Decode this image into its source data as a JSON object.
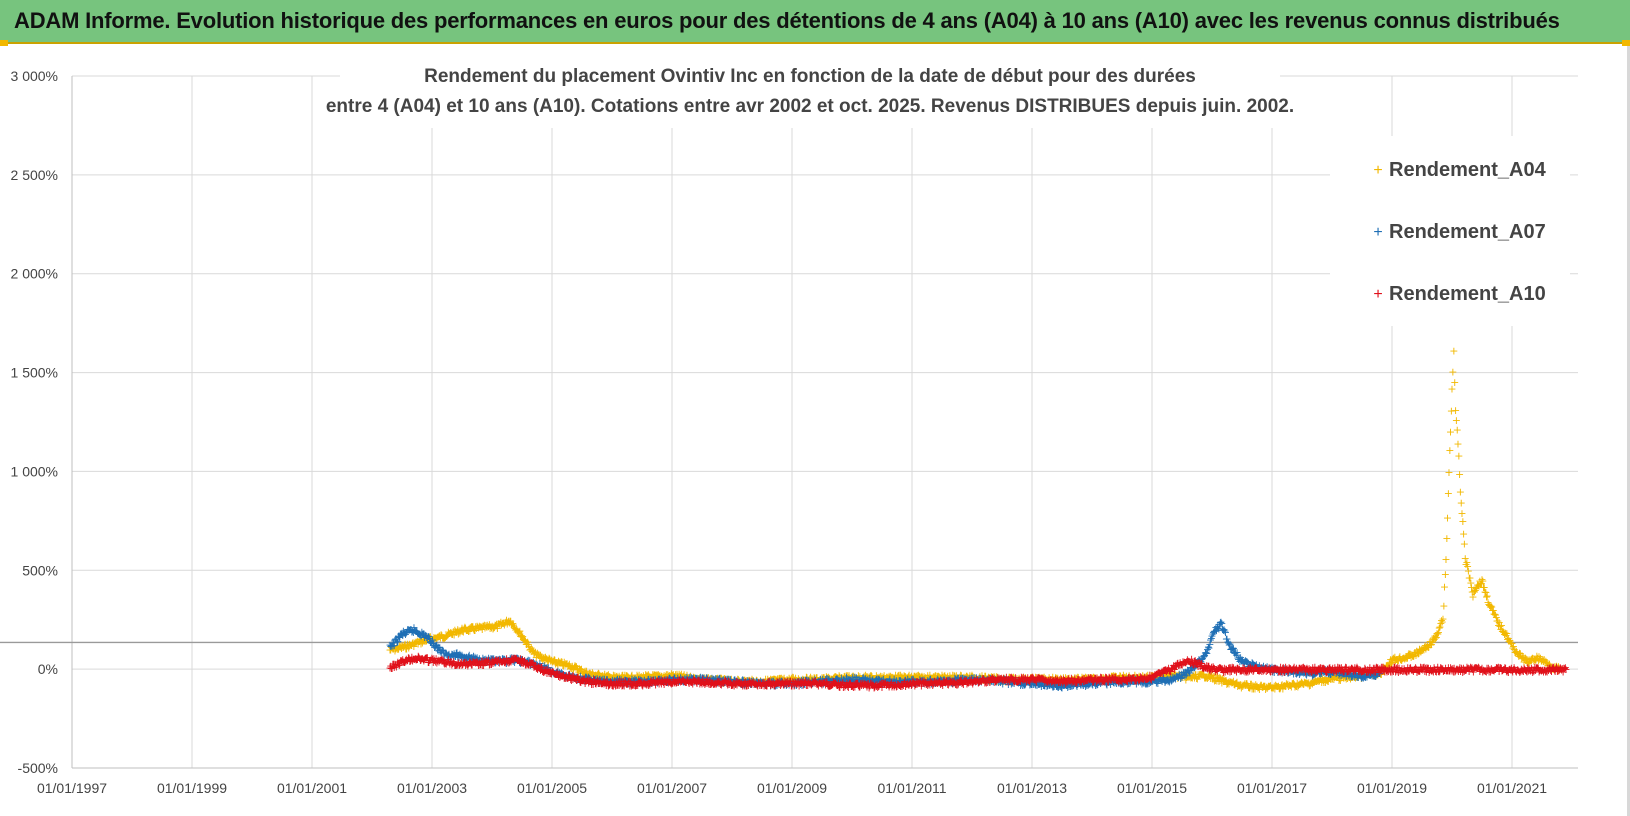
{
  "banner": {
    "title": "ADAM Informe. Evolution historique des performances en euros pour des détentions de 4 ans (A04) à 10 ans (A10) avec les revenus connus distribués"
  },
  "colors": {
    "banner_bg": "#77c47e",
    "a04": "#f2b800",
    "a07": "#1f6fb5",
    "a10": "#e0101a",
    "grid": "#d9d9d9"
  },
  "chart_data": {
    "type": "scatter",
    "title_lines": [
      "Rendement du placement Ovintiv Inc en fonction de la date de début pour des durées",
      "entre 4 (A04) et 10 ans (A10). Cotations entre avr 2002 et oct. 2025. Revenus DISTRIBUES depuis juin. 2002."
    ],
    "xlabel": "",
    "ylabel": "",
    "x_range": [
      1997.0,
      2022.1
    ],
    "ylim": [
      -500,
      3000
    ],
    "y_ticks": [
      -500,
      0,
      500,
      1000,
      1500,
      2000,
      2500,
      3000
    ],
    "y_tick_labels": [
      "-500%",
      "0%",
      "500%",
      "1 000%",
      "1 500%",
      "2 000%",
      "2 500%",
      "3 000%"
    ],
    "x_ticks": [
      1997,
      1999,
      2001,
      2003,
      2005,
      2007,
      2009,
      2011,
      2013,
      2015,
      2017,
      2019,
      2021
    ],
    "x_tick_labels": [
      "01/01/1997",
      "01/01/1999",
      "01/01/2001",
      "01/01/2003",
      "01/01/2005",
      "01/01/2007",
      "01/01/2009",
      "01/01/2011",
      "01/01/2013",
      "01/01/2015",
      "01/01/2017",
      "01/01/2019",
      "01/01/2021"
    ],
    "reference_line_y": 135,
    "legend_position": "right",
    "series": [
      {
        "name": "Rendement_A04",
        "color": "#f2b800",
        "x": [
          2002.3,
          2002.6,
          2002.9,
          2003.2,
          2003.5,
          2003.8,
          2004.1,
          2004.3,
          2004.5,
          2004.7,
          2005.0,
          2005.3,
          2005.6,
          2006.0,
          2006.5,
          2007.0,
          2007.5,
          2008.0,
          2008.5,
          2009.0,
          2009.5,
          2010.0,
          2010.5,
          2011.0,
          2011.5,
          2012.0,
          2012.5,
          2013.0,
          2013.5,
          2014.0,
          2014.5,
          2015.0,
          2015.3,
          2015.6,
          2015.9,
          2016.2,
          2016.5,
          2016.8,
          2017.0,
          2017.3,
          2017.6,
          2017.9,
          2018.2,
          2018.5,
          2018.8,
          2019.0,
          2019.2,
          2019.4,
          2019.6,
          2019.75,
          2019.85,
          2019.9,
          2019.95,
          2020.0,
          2020.03,
          2020.06,
          2020.1,
          2020.14,
          2020.18,
          2020.22,
          2020.26,
          2020.3,
          2020.35,
          2020.4,
          2020.5,
          2020.6,
          2020.7,
          2020.8,
          2020.9,
          2021.0,
          2021.1,
          2021.2,
          2021.3,
          2021.4,
          2021.5,
          2021.6,
          2021.7,
          2021.8
        ],
        "values": [
          100,
          120,
          150,
          170,
          200,
          210,
          220,
          250,
          170,
          80,
          40,
          20,
          -20,
          -40,
          -40,
          -30,
          -50,
          -60,
          -60,
          -50,
          -50,
          -40,
          -40,
          -40,
          -40,
          -40,
          -50,
          -50,
          -50,
          -50,
          -40,
          -40,
          -30,
          -40,
          -30,
          -60,
          -80,
          -90,
          -90,
          -80,
          -70,
          -50,
          -40,
          -30,
          -20,
          50,
          60,
          80,
          120,
          170,
          260,
          550,
          1000,
          1420,
          1610,
          1300,
          1150,
          900,
          750,
          560,
          520,
          450,
          380,
          420,
          450,
          350,
          280,
          220,
          180,
          120,
          80,
          50,
          40,
          60,
          50,
          30,
          10,
          0
        ]
      },
      {
        "name": "Rendement_A07",
        "color": "#1f6fb5",
        "x": [
          2002.3,
          2002.5,
          2002.7,
          2002.9,
          2003.2,
          2003.5,
          2003.8,
          2004.1,
          2004.4,
          2004.7,
          2005.0,
          2005.4,
          2005.8,
          2006.2,
          2006.6,
          2007.0,
          2007.5,
          2008.0,
          2008.5,
          2009.0,
          2009.5,
          2010.0,
          2010.5,
          2011.0,
          2011.5,
          2012.0,
          2012.5,
          2013.0,
          2013.5,
          2014.0,
          2014.5,
          2015.0,
          2015.3,
          2015.5,
          2015.7,
          2015.9,
          2016.05,
          2016.15,
          2016.3,
          2016.5,
          2016.8,
          2017.0,
          2017.3,
          2017.6,
          2017.9,
          2018.2,
          2018.5,
          2018.8
        ],
        "values": [
          110,
          180,
          200,
          170,
          80,
          70,
          50,
          40,
          50,
          30,
          -10,
          -40,
          -60,
          -60,
          -60,
          -50,
          -50,
          -60,
          -70,
          -70,
          -60,
          -50,
          -60,
          -60,
          -60,
          -50,
          -60,
          -70,
          -80,
          -70,
          -60,
          -60,
          -50,
          -30,
          10,
          80,
          200,
          230,
          120,
          40,
          10,
          0,
          -10,
          -20,
          -10,
          -20,
          -30,
          -20
        ]
      },
      {
        "name": "Rendement_A10",
        "color": "#e0101a",
        "x": [
          2002.3,
          2002.5,
          2002.7,
          2002.9,
          2003.2,
          2003.5,
          2003.8,
          2004.1,
          2004.4,
          2004.7,
          2005.0,
          2005.3,
          2005.6,
          2006.0,
          2006.5,
          2007.0,
          2007.5,
          2008.0,
          2008.5,
          2009.0,
          2009.5,
          2010.0,
          2010.5,
          2011.0,
          2011.5,
          2012.0,
          2012.5,
          2013.0,
          2013.5,
          2014.0,
          2014.5,
          2015.0,
          2015.3,
          2015.6,
          2015.9,
          2016.1,
          2016.3,
          2016.6,
          2017.0,
          2017.5,
          2018.0,
          2018.5,
          2019.0,
          2019.5,
          2020.0,
          2020.5,
          2021.0,
          2021.5,
          2021.9
        ],
        "values": [
          10,
          40,
          60,
          50,
          40,
          30,
          30,
          40,
          50,
          20,
          -20,
          -40,
          -60,
          -70,
          -70,
          -60,
          -60,
          -70,
          -70,
          -70,
          -70,
          -80,
          -80,
          -70,
          -70,
          -60,
          -50,
          -50,
          -60,
          -50,
          -50,
          -40,
          0,
          50,
          10,
          0,
          0,
          0,
          0,
          0,
          0,
          0,
          0,
          0,
          0,
          0,
          0,
          0,
          0
        ]
      }
    ]
  }
}
